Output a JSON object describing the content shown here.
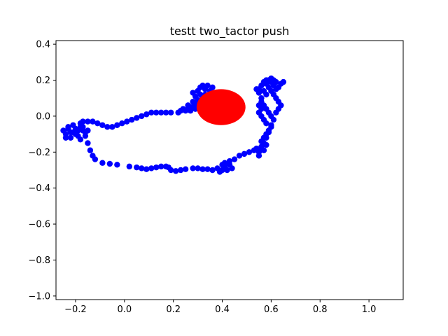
{
  "chart_data": {
    "type": "scatter",
    "title": "testt two_tactor push",
    "xlabel": "",
    "ylabel": "",
    "xlim": [
      -0.28,
      1.14
    ],
    "ylim": [
      -1.02,
      0.42
    ],
    "xticks": [
      -0.2,
      0.0,
      0.2,
      0.4,
      0.6,
      0.8,
      1.0
    ],
    "xtick_labels": [
      "−0.2",
      "0.0",
      "0.2",
      "0.4",
      "0.6",
      "0.8",
      "1.0"
    ],
    "yticks": [
      0.4,
      0.2,
      0.0,
      -0.2,
      -0.4,
      -0.6,
      -0.8,
      -1.0
    ],
    "ytick_labels": [
      "0.4",
      "0.2",
      "0.0",
      "−0.2",
      "−0.4",
      "−0.6",
      "−0.8",
      "−1.0"
    ],
    "grid": false,
    "colors": {
      "trajectory": "#0000ff",
      "target": "#ff0000"
    },
    "series": [
      {
        "points": [
          [
            -0.25,
            -0.08
          ],
          [
            -0.24,
            -0.1
          ],
          [
            -0.23,
            -0.06
          ],
          [
            -0.22,
            -0.09
          ],
          [
            -0.21,
            -0.05
          ],
          [
            -0.2,
            -0.07
          ],
          [
            -0.19,
            -0.11
          ],
          [
            -0.18,
            -0.06
          ],
          [
            -0.17,
            -0.08
          ],
          [
            -0.16,
            -0.09
          ],
          [
            -0.24,
            -0.12
          ],
          [
            -0.22,
            -0.12
          ],
          [
            -0.2,
            -0.1
          ],
          [
            -0.18,
            -0.13
          ],
          [
            -0.16,
            -0.11
          ],
          [
            -0.23,
            -0.07
          ],
          [
            -0.21,
            -0.09
          ],
          [
            -0.19,
            -0.08
          ],
          [
            -0.17,
            -0.06
          ],
          [
            -0.15,
            -0.08
          ],
          [
            -0.18,
            -0.04
          ],
          [
            -0.17,
            -0.03
          ],
          [
            -0.15,
            -0.03
          ],
          [
            -0.13,
            -0.03
          ],
          [
            -0.11,
            -0.04
          ],
          [
            -0.09,
            -0.05
          ],
          [
            -0.07,
            -0.06
          ],
          [
            -0.05,
            -0.06
          ],
          [
            -0.03,
            -0.05
          ],
          [
            -0.01,
            -0.04
          ],
          [
            0.01,
            -0.03
          ],
          [
            0.03,
            -0.02
          ],
          [
            0.05,
            -0.01
          ],
          [
            0.07,
            0.0
          ],
          [
            0.09,
            0.01
          ],
          [
            0.11,
            0.02
          ],
          [
            0.13,
            0.02
          ],
          [
            0.15,
            0.02
          ],
          [
            0.17,
            0.02
          ],
          [
            0.19,
            0.02
          ],
          [
            0.22,
            0.02
          ],
          [
            0.23,
            0.03
          ],
          [
            0.24,
            0.04
          ],
          [
            0.25,
            0.03
          ],
          [
            0.26,
            0.04
          ],
          [
            0.27,
            0.03
          ],
          [
            0.28,
            0.05
          ],
          [
            0.29,
            0.04
          ],
          [
            0.3,
            0.05
          ],
          [
            0.31,
            0.04
          ],
          [
            0.32,
            0.05
          ],
          [
            0.33,
            0.06
          ],
          [
            0.34,
            0.04
          ],
          [
            0.35,
            0.05
          ],
          [
            0.28,
            0.08
          ],
          [
            0.29,
            0.11
          ],
          [
            0.28,
            0.13
          ],
          [
            0.3,
            0.14
          ],
          [
            0.31,
            0.16
          ],
          [
            0.32,
            0.17
          ],
          [
            0.33,
            0.15
          ],
          [
            0.34,
            0.17
          ],
          [
            0.35,
            0.14
          ],
          [
            0.36,
            0.16
          ],
          [
            0.3,
            0.09
          ],
          [
            0.31,
            0.12
          ],
          [
            0.32,
            0.1
          ],
          [
            0.33,
            0.12
          ],
          [
            0.34,
            0.1
          ],
          [
            0.35,
            0.12
          ],
          [
            0.36,
            0.08
          ],
          [
            0.29,
            0.07
          ],
          [
            0.3,
            0.06
          ],
          [
            0.27,
            0.05
          ],
          [
            0.26,
            0.06
          ],
          [
            -0.15,
            -0.15
          ],
          [
            -0.14,
            -0.19
          ],
          [
            -0.13,
            -0.22
          ],
          [
            -0.12,
            -0.24
          ],
          [
            -0.09,
            -0.26
          ],
          [
            -0.06,
            -0.265
          ],
          [
            -0.03,
            -0.27
          ],
          [
            0.02,
            -0.28
          ],
          [
            0.05,
            -0.285
          ],
          [
            0.07,
            -0.29
          ],
          [
            0.09,
            -0.295
          ],
          [
            0.11,
            -0.29
          ],
          [
            0.13,
            -0.285
          ],
          [
            0.15,
            -0.28
          ],
          [
            0.17,
            -0.28
          ],
          [
            0.18,
            -0.285
          ],
          [
            0.19,
            -0.3
          ],
          [
            0.21,
            -0.305
          ],
          [
            0.23,
            -0.3
          ],
          [
            0.25,
            -0.295
          ],
          [
            0.28,
            -0.29
          ],
          [
            0.3,
            -0.29
          ],
          [
            0.32,
            -0.295
          ],
          [
            0.34,
            -0.295
          ],
          [
            0.36,
            -0.3
          ],
          [
            0.38,
            -0.29
          ],
          [
            0.4,
            -0.3
          ],
          [
            0.41,
            -0.28
          ],
          [
            0.42,
            -0.3
          ],
          [
            0.43,
            -0.27
          ],
          [
            0.44,
            -0.29
          ],
          [
            0.39,
            -0.31
          ],
          [
            0.4,
            -0.27
          ],
          [
            0.41,
            -0.26
          ],
          [
            0.43,
            -0.25
          ],
          [
            0.45,
            -0.24
          ],
          [
            0.47,
            -0.22
          ],
          [
            0.49,
            -0.21
          ],
          [
            0.51,
            -0.2
          ],
          [
            0.53,
            -0.19
          ],
          [
            0.54,
            -0.18
          ],
          [
            0.55,
            -0.2
          ],
          [
            0.56,
            -0.17
          ],
          [
            0.57,
            -0.19
          ],
          [
            0.58,
            -0.16
          ],
          [
            0.55,
            -0.22
          ],
          [
            0.56,
            -0.14
          ],
          [
            0.57,
            -0.12
          ],
          [
            0.58,
            -0.1
          ],
          [
            0.59,
            -0.08
          ],
          [
            0.6,
            -0.06
          ],
          [
            0.58,
            -0.04
          ],
          [
            0.57,
            -0.02
          ],
          [
            0.56,
            0.0
          ],
          [
            0.55,
            0.02
          ],
          [
            0.56,
            0.04
          ],
          [
            0.55,
            0.06
          ],
          [
            0.56,
            0.08
          ],
          [
            0.57,
            0.06
          ],
          [
            0.58,
            0.04
          ],
          [
            0.59,
            0.02
          ],
          [
            0.6,
            0.0
          ],
          [
            0.61,
            -0.02
          ],
          [
            0.6,
            -0.05
          ],
          [
            0.59,
            -0.09
          ],
          [
            0.58,
            -0.12
          ],
          [
            0.57,
            -0.15
          ],
          [
            0.56,
            -0.18
          ],
          [
            0.62,
            0.02
          ],
          [
            0.63,
            0.04
          ],
          [
            0.64,
            0.06
          ],
          [
            0.63,
            0.08
          ],
          [
            0.62,
            0.1
          ],
          [
            0.61,
            0.12
          ],
          [
            0.6,
            0.14
          ],
          [
            0.59,
            0.16
          ],
          [
            0.58,
            0.18
          ],
          [
            0.59,
            0.2
          ],
          [
            0.6,
            0.19
          ],
          [
            0.61,
            0.17
          ],
          [
            0.62,
            0.15
          ],
          [
            0.63,
            0.16
          ],
          [
            0.64,
            0.18
          ],
          [
            0.65,
            0.19
          ],
          [
            0.55,
            0.15
          ],
          [
            0.56,
            0.17
          ],
          [
            0.57,
            0.14
          ],
          [
            0.58,
            0.12
          ],
          [
            0.56,
            0.1
          ],
          [
            0.55,
            0.13
          ],
          [
            0.54,
            0.15
          ],
          [
            0.57,
            0.19
          ],
          [
            0.58,
            0.2
          ],
          [
            0.6,
            0.21
          ],
          [
            0.61,
            0.2
          ],
          [
            0.62,
            0.19
          ]
        ]
      },
      {
        "type": "ellipse",
        "center": [
          0.395,
          0.05
        ],
        "radii": [
          0.1,
          0.1
        ]
      }
    ]
  }
}
